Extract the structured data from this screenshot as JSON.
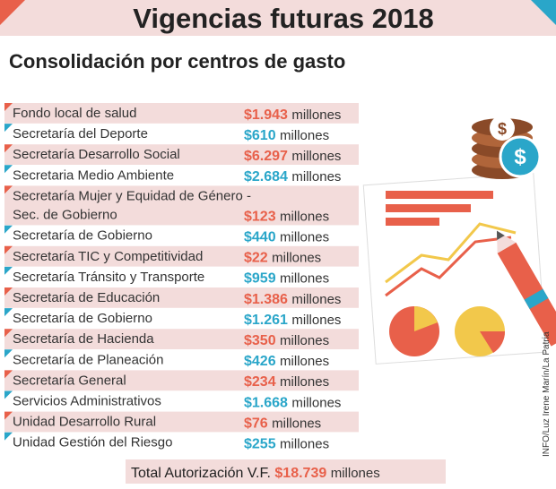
{
  "header": {
    "title": "Vigencias futuras 2018",
    "subtitle": "Consolidación por centros de gasto"
  },
  "rows": [
    {
      "name": [
        "Fondo local de salud"
      ],
      "amount": "$1.943",
      "unit": "millones"
    },
    {
      "name": [
        "Secretaría del Deporte"
      ],
      "amount": "$610",
      "unit": "millones"
    },
    {
      "name": [
        "Secretaría Desarrollo Social"
      ],
      "amount": "$6.297",
      "unit": "millones"
    },
    {
      "name": [
        "Secretaria Medio Ambiente"
      ],
      "amount": "$2.684",
      "unit": "millones"
    },
    {
      "name": [
        "Secretaría Mujer y Equidad de Género -",
        "Sec. de Gobierno"
      ],
      "amount": "$123",
      "unit": "millones"
    },
    {
      "name": [
        "Secretaría de Gobierno"
      ],
      "amount": "$440",
      "unit": "millones"
    },
    {
      "name": [
        "Secretaría TIC y Competitividad"
      ],
      "amount": "$22",
      "unit": "millones"
    },
    {
      "name": [
        "Secretaría Tránsito y Transporte"
      ],
      "amount": "$959",
      "unit": "millones"
    },
    {
      "name": [
        "Secretaría de Educación"
      ],
      "amount": "$1.386",
      "unit": "millones"
    },
    {
      "name": [
        "Secretaría de Gobierno"
      ],
      "amount": "$1.261",
      "unit": "millones"
    },
    {
      "name": [
        "Secretaría de Hacienda"
      ],
      "amount": "$350",
      "unit": "millones"
    },
    {
      "name": [
        "Secretaría de Planeación"
      ],
      "amount": "$426",
      "unit": "millones"
    },
    {
      "name": [
        "Secretaría General"
      ],
      "amount": "$234",
      "unit": "millones"
    },
    {
      "name": [
        "Servicios Administrativos"
      ],
      "amount": "$1.668",
      "unit": "millones"
    },
    {
      "name": [
        "Unidad Desarrollo Rural"
      ],
      "amount": "$76",
      "unit": "millones"
    },
    {
      "name": [
        "Unidad Gestión del Riesgo"
      ],
      "amount": "$255",
      "unit": "millones"
    }
  ],
  "total": {
    "label": "Total Autorización V.F.",
    "amount": "$18.739",
    "unit": "millones"
  },
  "credit": "INFO/Luz Irene Marín/La Patria"
}
